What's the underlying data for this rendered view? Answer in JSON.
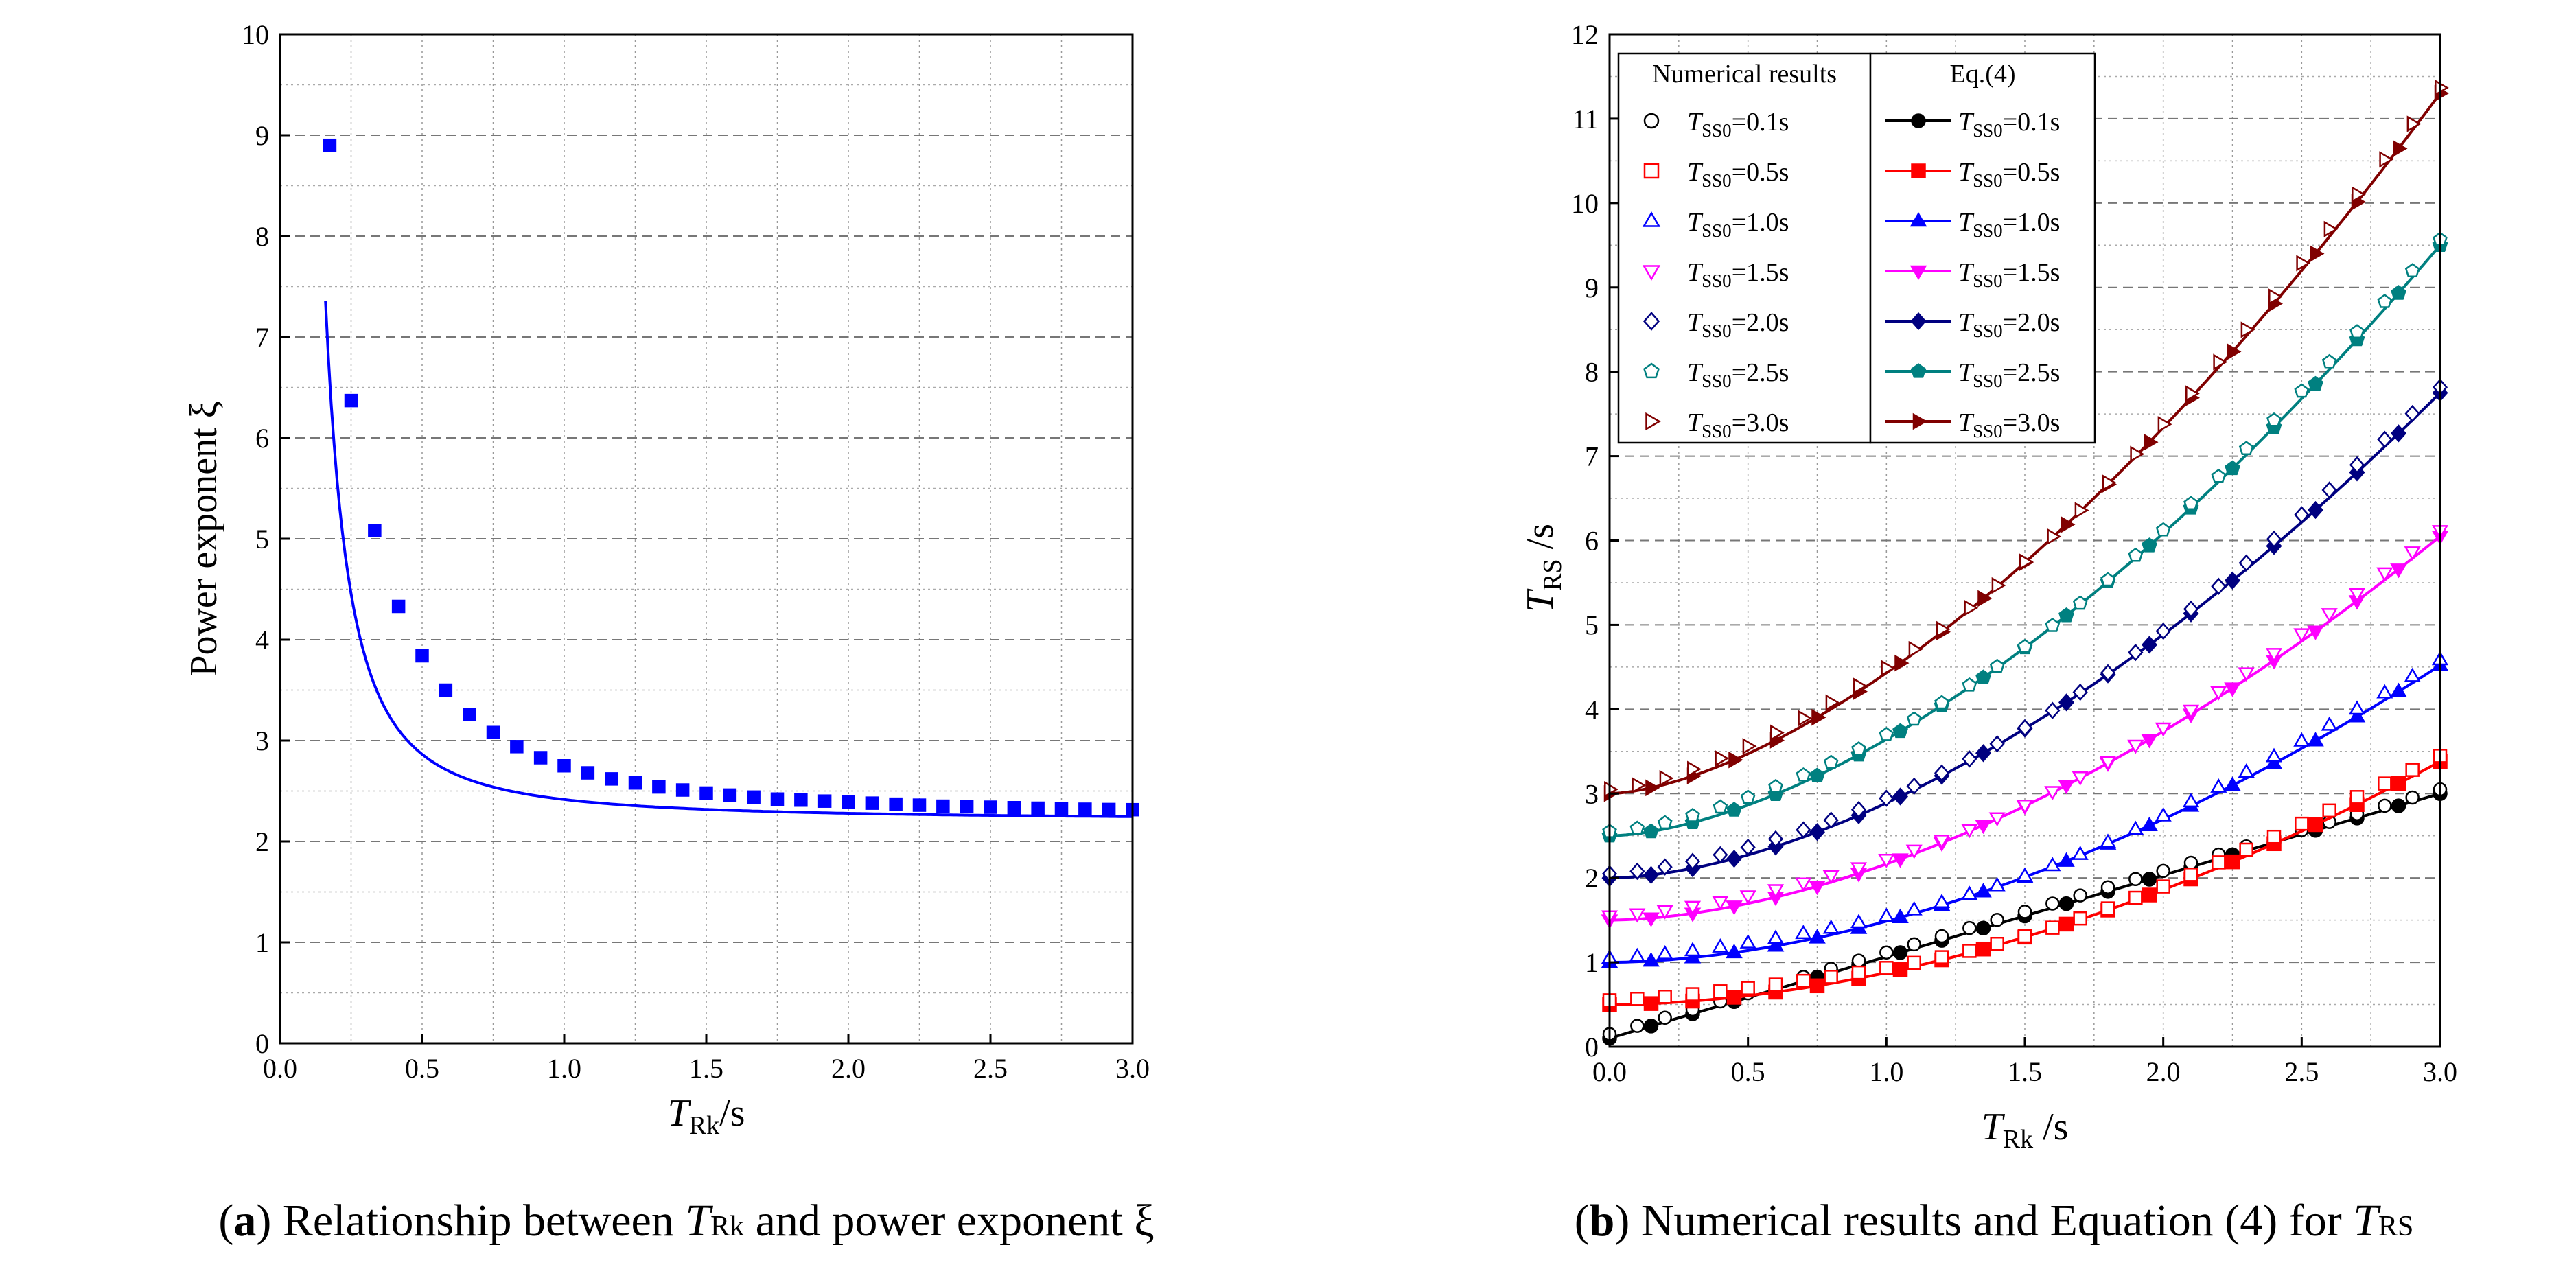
{
  "chart_data": [
    {
      "id": "a",
      "type": "line",
      "caption": {
        "label": "a",
        "text_pre": "Relationship between ",
        "var_main": "T",
        "var_sub": "Rk",
        "text_post": " and power exponent ξ"
      },
      "xlabel": {
        "main": "T",
        "sub": "Rk",
        "suffix": "/s"
      },
      "ylabel": "Power exponent ξ",
      "xlim": [
        0,
        3
      ],
      "ylim": [
        0,
        10
      ],
      "xticks": [
        "0.0",
        "0.5",
        "1.0",
        "1.5",
        "2.0",
        "2.5",
        "3.0"
      ],
      "yticks": [
        "0",
        "1",
        "2",
        "3",
        "4",
        "5",
        "6",
        "7",
        "8",
        "9",
        "10"
      ],
      "grid": true,
      "series": [
        {
          "name": "ξ",
          "color": "#0000ff",
          "marker": "square",
          "x": [
            0.175,
            0.25,
            0.333,
            0.417,
            0.5,
            0.583,
            0.667,
            0.75,
            0.833,
            0.917,
            1.0,
            1.083,
            1.167,
            1.25,
            1.333,
            1.417,
            1.5,
            1.583,
            1.667,
            1.75,
            1.833,
            1.917,
            2.0,
            2.083,
            2.167,
            2.25,
            2.333,
            2.417,
            2.5,
            2.583,
            2.667,
            2.75,
            2.833,
            2.917,
            3.0
          ],
          "y": [
            8.9,
            6.37,
            5.08,
            4.33,
            3.84,
            3.5,
            3.26,
            3.08,
            2.94,
            2.83,
            2.75,
            2.68,
            2.62,
            2.58,
            2.54,
            2.51,
            2.48,
            2.46,
            2.44,
            2.42,
            2.41,
            2.4,
            2.39,
            2.38,
            2.37,
            2.36,
            2.35,
            2.345,
            2.34,
            2.335,
            2.33,
            2.325,
            2.32,
            2.317,
            2.315
          ]
        }
      ]
    },
    {
      "id": "b",
      "type": "line",
      "caption": {
        "label": "b",
        "text_pre": "Numerical results and Equation (4) for ",
        "var_main": "T",
        "var_sub": "RS",
        "text_post": ""
      },
      "xlabel": {
        "main": "T",
        "sub": "Rk",
        "suffix": " /s"
      },
      "ylabel": {
        "main": "T",
        "sub": "RS",
        "suffix": " /s"
      },
      "xlim": [
        0,
        3
      ],
      "ylim": [
        0,
        12
      ],
      "xticks": [
        "0.0",
        "0.5",
        "1.0",
        "1.5",
        "2.0",
        "2.5",
        "3.0"
      ],
      "yticks": [
        "0",
        "1",
        "2",
        "3",
        "4",
        "5",
        "6",
        "7",
        "8",
        "9",
        "10",
        "11",
        "12"
      ],
      "grid": true,
      "legend_titles": [
        "Numerical results",
        "Eq.(4)"
      ],
      "legend_placement": "top-left",
      "series": [
        {
          "tss0": 0.1,
          "label_pre": "T",
          "label_sub": "SS0",
          "label_post": "=0.1s",
          "color": "#000000",
          "open_marker": "circle",
          "filled_marker": "circle"
        },
        {
          "tss0": 0.5,
          "label_pre": "T",
          "label_sub": "SS0",
          "label_post": "=0.5s",
          "color": "#ff0000",
          "open_marker": "square",
          "filled_marker": "square"
        },
        {
          "tss0": 1.0,
          "label_pre": "T",
          "label_sub": "SS0",
          "label_post": "=1.0s",
          "color": "#0000ff",
          "open_marker": "triangle-up",
          "filled_marker": "triangle-up"
        },
        {
          "tss0": 1.5,
          "label_pre": "T",
          "label_sub": "SS0",
          "label_post": "=1.5s",
          "color": "#ff00ff",
          "open_marker": "triangle-down",
          "filled_marker": "triangle-down"
        },
        {
          "tss0": 2.0,
          "label_pre": "T",
          "label_sub": "SS0",
          "label_post": "=2.0s",
          "color": "#000080",
          "open_marker": "diamond",
          "filled_marker": "diamond"
        },
        {
          "tss0": 2.5,
          "label_pre": "T",
          "label_sub": "SS0",
          "label_post": "=2.5s",
          "color": "#008080",
          "open_marker": "pentagon",
          "filled_marker": "pentagon"
        },
        {
          "tss0": 3.0,
          "label_pre": "T",
          "label_sub": "SS0",
          "label_post": "=3.0s",
          "color": "#800000",
          "open_marker": "triangle-right",
          "filled_marker": "triangle-right"
        }
      ],
      "x_numerical": [
        0,
        0.1,
        0.2,
        0.3,
        0.4,
        0.5,
        0.6,
        0.7,
        0.8,
        0.9,
        1.0,
        1.1,
        1.2,
        1.3,
        1.4,
        1.5,
        1.6,
        1.7,
        1.8,
        1.9,
        2.0,
        2.1,
        2.2,
        2.3,
        2.4,
        2.5,
        2.6,
        2.7,
        2.8,
        2.9,
        3.0
      ],
      "x_equation": [
        0,
        0.15,
        0.3,
        0.45,
        0.6,
        0.75,
        0.9,
        1.05,
        1.2,
        1.35,
        1.5,
        1.65,
        1.8,
        1.95,
        2.1,
        2.25,
        2.4,
        2.55,
        2.7,
        2.85,
        3.0
      ]
    }
  ]
}
